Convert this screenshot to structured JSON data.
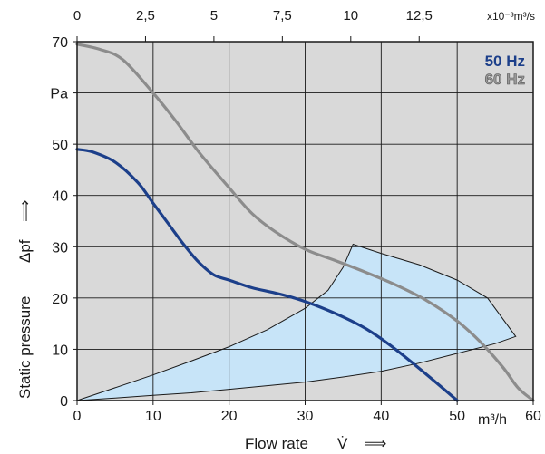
{
  "chart_data": {
    "type": "line",
    "plot_background": "#d9d9d9",
    "grid": true,
    "x_axis": {
      "label": "Flow rate",
      "symbol": "V̇",
      "arrow": "⟹",
      "unit": "m³/h",
      "lim": [
        0,
        60
      ],
      "ticks": [
        0,
        10,
        20,
        30,
        40,
        50,
        60
      ],
      "tick_labels": [
        "0",
        "10",
        "20",
        "30",
        "40",
        "50",
        "60"
      ]
    },
    "x_axis_top": {
      "unit": "x10⁻³m³/s",
      "tick_labels": [
        "0",
        "2,5",
        "5",
        "7,5",
        "10",
        "12,5"
      ],
      "tick_values_m3h": [
        0,
        9,
        18,
        27,
        36,
        45
      ]
    },
    "y_axis": {
      "label": "Static pressure",
      "symbol": "Δpf",
      "arrow": "⟹",
      "unit": "Pa",
      "lim": [
        0,
        70
      ],
      "ticks": [
        0,
        10,
        20,
        30,
        40,
        50,
        60,
        70
      ],
      "tick_labels": [
        "0",
        "10",
        "20",
        "30",
        "40",
        "50",
        "Pa",
        "70"
      ]
    },
    "legend": {
      "placement": "top-right",
      "entries": [
        {
          "name": "50 Hz",
          "color": "#1c3f8a"
        },
        {
          "name": "60 Hz",
          "color": "#8c8c8c"
        }
      ]
    },
    "series": [
      {
        "name": "50 Hz",
        "color": "#1c3f8a",
        "x": [
          0,
          2,
          5,
          8,
          10,
          12,
          14,
          16,
          18,
          20,
          23,
          26,
          29,
          32,
          35,
          38,
          41,
          44,
          47,
          50
        ],
        "y": [
          49,
          48.5,
          46.5,
          42.5,
          38.5,
          34.5,
          30.5,
          27,
          24.5,
          23.5,
          22,
          21,
          19.8,
          18.2,
          16.3,
          14,
          11,
          7.5,
          3.8,
          0
        ]
      },
      {
        "name": "60 Hz",
        "color": "#8c8c8c",
        "x": [
          0,
          3,
          6,
          10,
          13,
          16,
          20,
          23,
          26,
          30,
          34,
          38,
          42,
          46,
          50,
          53,
          56,
          58,
          60
        ],
        "y": [
          69.5,
          68.5,
          66.5,
          60,
          54.5,
          48.5,
          41.5,
          36.5,
          33,
          29.5,
          27.3,
          25,
          22.5,
          19.5,
          15.5,
          11.5,
          6.5,
          2.5,
          0
        ]
      }
    ],
    "operating_region": {
      "color": "#c7e4f8",
      "x": [
        0,
        5,
        10,
        15,
        20,
        25,
        30,
        33,
        35,
        36.3,
        40,
        45,
        50,
        54,
        57.7,
        55,
        50,
        45,
        40,
        35,
        30,
        25,
        20,
        15,
        10,
        5
      ],
      "y": [
        0,
        2.5,
        5,
        7.7,
        10.5,
        13.8,
        18,
        21.5,
        26,
        30.5,
        28.7,
        26.5,
        23.5,
        20,
        12.5,
        11.1,
        9.2,
        7.3,
        5.7,
        4.6,
        3.6,
        2.9,
        2.2,
        1.5,
        1,
        0.5
      ]
    }
  }
}
